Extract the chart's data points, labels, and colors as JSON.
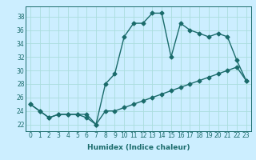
{
  "title": "",
  "xlabel": "Humidex (Indice chaleur)",
  "ylabel": "",
  "background_color": "#cceeff",
  "grid_color": "#aadddd",
  "line_color": "#1a6b6b",
  "xlim": [
    -0.5,
    23.5
  ],
  "ylim": [
    21.0,
    39.5
  ],
  "yticks": [
    22,
    24,
    26,
    28,
    30,
    32,
    34,
    36,
    38
  ],
  "xticks": [
    0,
    1,
    2,
    3,
    4,
    5,
    6,
    7,
    8,
    9,
    10,
    11,
    12,
    13,
    14,
    15,
    16,
    17,
    18,
    19,
    20,
    21,
    22,
    23
  ],
  "x": [
    0,
    1,
    2,
    3,
    4,
    5,
    6,
    7,
    8,
    9,
    10,
    11,
    12,
    13,
    14,
    15,
    16,
    17,
    18,
    19,
    20,
    21,
    22,
    23
  ],
  "y_upper": [
    25,
    24,
    23,
    23.5,
    23.5,
    23.5,
    23,
    22,
    28,
    29.5,
    35,
    37,
    37,
    38.5,
    38.5,
    32,
    37,
    36,
    35.5,
    35,
    35.5,
    35,
    31.5,
    28.5
  ],
  "y_lower": [
    25,
    24,
    23,
    23.5,
    23.5,
    23.5,
    23.5,
    22,
    24,
    24,
    24.5,
    25,
    25.5,
    26,
    26.5,
    27,
    27.5,
    28,
    28.5,
    29,
    29.5,
    30,
    30.5,
    28.5
  ],
  "marker": "D",
  "markersize": 2.5,
  "linewidth": 1.0
}
